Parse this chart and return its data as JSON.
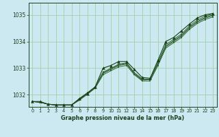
{
  "xlabel": "Graphe pression niveau de la mer (hPa)",
  "bg_color": "#cce8f0",
  "grid_color": "#99cc99",
  "line_color": "#336633",
  "dark_line_color": "#1a3d1a",
  "xlim": [
    -0.5,
    23.5
  ],
  "ylim": [
    1031.55,
    1035.45
  ],
  "yticks": [
    1032,
    1033,
    1034,
    1035
  ],
  "xticks": [
    0,
    1,
    2,
    3,
    4,
    5,
    6,
    7,
    8,
    9,
    10,
    11,
    12,
    13,
    14,
    15,
    16,
    17,
    18,
    19,
    20,
    21,
    22,
    23
  ],
  "series_main": [
    1031.75,
    1031.75,
    1031.65,
    1031.62,
    1031.62,
    1031.62,
    1031.85,
    1032.05,
    1032.3,
    1033.0,
    1033.1,
    1033.25,
    1033.25,
    1032.95,
    1032.65,
    1032.62,
    1033.3,
    1034.0,
    1034.15,
    1034.4,
    1034.65,
    1034.88,
    1035.0,
    1035.05
  ],
  "series_a": [
    1031.75,
    1031.72,
    1031.65,
    1031.62,
    1031.62,
    1031.62,
    1031.82,
    1032.05,
    1032.27,
    1032.8,
    1032.95,
    1033.1,
    1033.15,
    1032.78,
    1032.55,
    1032.57,
    1033.15,
    1033.8,
    1034.0,
    1034.2,
    1034.5,
    1034.72,
    1034.87,
    1034.97
  ],
  "series_b": [
    1031.75,
    1031.72,
    1031.65,
    1031.62,
    1031.62,
    1031.62,
    1031.8,
    1032.02,
    1032.25,
    1032.75,
    1032.9,
    1033.05,
    1033.1,
    1032.75,
    1032.52,
    1032.52,
    1033.1,
    1033.75,
    1033.95,
    1034.15,
    1034.45,
    1034.67,
    1034.82,
    1034.92
  ],
  "series_c": [
    1031.75,
    1031.72,
    1031.65,
    1031.62,
    1031.62,
    1031.62,
    1031.85,
    1032.05,
    1032.28,
    1032.82,
    1032.97,
    1033.12,
    1033.18,
    1032.8,
    1032.57,
    1032.57,
    1033.18,
    1033.83,
    1034.03,
    1034.23,
    1034.53,
    1034.75,
    1034.9,
    1035.0
  ],
  "series_d": [
    1031.75,
    1031.72,
    1031.65,
    1031.62,
    1031.62,
    1031.62,
    1031.87,
    1032.08,
    1032.3,
    1032.85,
    1033.0,
    1033.15,
    1033.2,
    1032.83,
    1032.6,
    1032.58,
    1033.22,
    1033.88,
    1034.08,
    1034.28,
    1034.58,
    1034.8,
    1034.95,
    1035.03
  ]
}
